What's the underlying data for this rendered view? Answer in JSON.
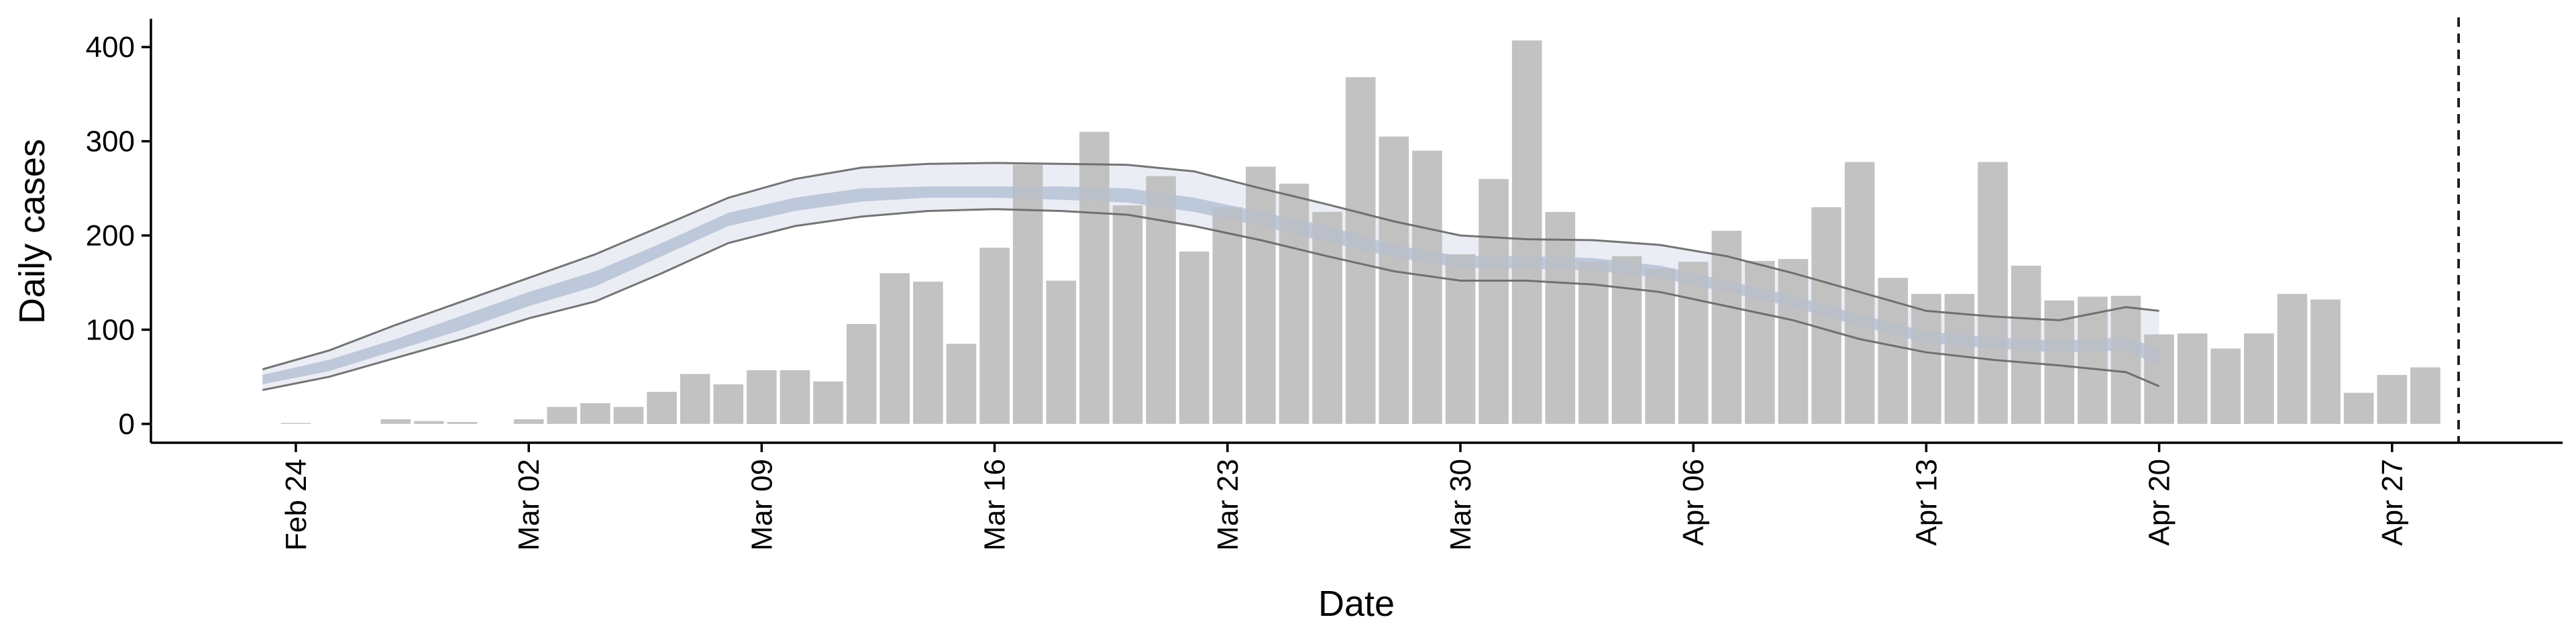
{
  "chart_data": {
    "type": "bar",
    "xlabel": "Date",
    "ylabel": "Daily cases",
    "x_range": [
      "2020-02-16",
      "2020-05-01"
    ],
    "ylim": [
      -20,
      430
    ],
    "y_ticks": [
      0,
      100,
      200,
      300,
      400
    ],
    "x_ticks": [
      {
        "date": "2020-02-24",
        "label": "Feb 24"
      },
      {
        "date": "2020-03-02",
        "label": "Mar 02"
      },
      {
        "date": "2020-03-09",
        "label": "Mar 09"
      },
      {
        "date": "2020-03-16",
        "label": "Mar 16"
      },
      {
        "date": "2020-03-23",
        "label": "Mar 23"
      },
      {
        "date": "2020-03-30",
        "label": "Mar 30"
      },
      {
        "date": "2020-04-06",
        "label": "Apr 06"
      },
      {
        "date": "2020-04-13",
        "label": "Apr 13"
      },
      {
        "date": "2020-04-20",
        "label": "Apr 20"
      },
      {
        "date": "2020-04-27",
        "label": "Apr 27"
      }
    ],
    "grid": false,
    "colors": {
      "bars": "#bdbdbd",
      "band_outer_fill": "#e8eaf2",
      "band_inner_fill": "#b8c2d8",
      "band_outline": "#666666",
      "vline": "#222222"
    },
    "bar_dates": [
      "2020-02-24",
      "2020-02-25",
      "2020-02-26",
      "2020-02-27",
      "2020-02-28",
      "2020-02-29",
      "2020-03-01",
      "2020-03-02",
      "2020-03-03",
      "2020-03-04",
      "2020-03-05",
      "2020-03-06",
      "2020-03-07",
      "2020-03-08",
      "2020-03-09",
      "2020-03-10",
      "2020-03-11",
      "2020-03-12",
      "2020-03-13",
      "2020-03-14",
      "2020-03-15",
      "2020-03-16",
      "2020-03-17",
      "2020-03-18",
      "2020-03-19",
      "2020-03-20",
      "2020-03-21",
      "2020-03-22",
      "2020-03-23",
      "2020-03-24",
      "2020-03-25",
      "2020-03-26",
      "2020-03-27",
      "2020-03-28",
      "2020-03-29",
      "2020-03-30",
      "2020-03-31",
      "2020-04-01",
      "2020-04-02",
      "2020-04-03",
      "2020-04-04",
      "2020-04-05",
      "2020-04-06",
      "2020-04-07",
      "2020-04-08",
      "2020-04-09",
      "2020-04-10",
      "2020-04-11",
      "2020-04-12",
      "2020-04-13",
      "2020-04-14",
      "2020-04-15",
      "2020-04-16",
      "2020-04-17",
      "2020-04-18",
      "2020-04-19",
      "2020-04-20",
      "2020-04-21",
      "2020-04-22",
      "2020-04-23",
      "2020-04-24",
      "2020-04-25",
      "2020-04-26",
      "2020-04-27",
      "2020-04-28",
      "2020-04-29"
    ],
    "bar_values": [
      1,
      0,
      0,
      5,
      3,
      2,
      0,
      5,
      18,
      22,
      18,
      34,
      53,
      42,
      57,
      57,
      45,
      106,
      160,
      151,
      85,
      187,
      275,
      152,
      310,
      232,
      263,
      183,
      230,
      273,
      255,
      225,
      368,
      305,
      290,
      180,
      260,
      407,
      225,
      172,
      178,
      165,
      172,
      205,
      173,
      175,
      230,
      278,
      155,
      138,
      138,
      278,
      168,
      131,
      135,
      136,
      95,
      96,
      80,
      96,
      138,
      132,
      33,
      52,
      60,
      0
    ],
    "band_dates": [
      "2020-02-23",
      "2020-02-25",
      "2020-02-27",
      "2020-02-29",
      "2020-03-02",
      "2020-03-04",
      "2020-03-06",
      "2020-03-08",
      "2020-03-10",
      "2020-03-12",
      "2020-03-14",
      "2020-03-16",
      "2020-03-18",
      "2020-03-20",
      "2020-03-22",
      "2020-03-24",
      "2020-03-26",
      "2020-03-28",
      "2020-03-30",
      "2020-04-01",
      "2020-04-03",
      "2020-04-05",
      "2020-04-07",
      "2020-04-09",
      "2020-04-11",
      "2020-04-13",
      "2020-04-15",
      "2020-04-17",
      "2020-04-19",
      "2020-04-20"
    ],
    "band_outer_upper": [
      58,
      78,
      105,
      130,
      155,
      180,
      210,
      240,
      260,
      272,
      276,
      277,
      276,
      275,
      268,
      250,
      233,
      215,
      200,
      196,
      195,
      190,
      178,
      160,
      140,
      120,
      114,
      110,
      124,
      120
    ],
    "band_outer_lower": [
      36,
      50,
      70,
      90,
      112,
      130,
      160,
      192,
      210,
      220,
      226,
      228,
      226,
      222,
      210,
      195,
      178,
      162,
      152,
      152,
      148,
      140,
      125,
      110,
      90,
      76,
      68,
      62,
      55,
      40
    ],
    "band_inner_upper": [
      52,
      68,
      90,
      115,
      140,
      162,
      192,
      224,
      240,
      250,
      252,
      252,
      252,
      250,
      240,
      225,
      210,
      190,
      178,
      178,
      176,
      168,
      152,
      136,
      116,
      98,
      92,
      88,
      92,
      80
    ],
    "band_inner_lower": [
      42,
      56,
      78,
      100,
      125,
      146,
      178,
      210,
      226,
      236,
      240,
      240,
      238,
      235,
      225,
      210,
      193,
      177,
      166,
      165,
      163,
      155,
      140,
      124,
      104,
      86,
      80,
      76,
      78,
      62
    ],
    "vline_date": "2020-04-29"
  }
}
